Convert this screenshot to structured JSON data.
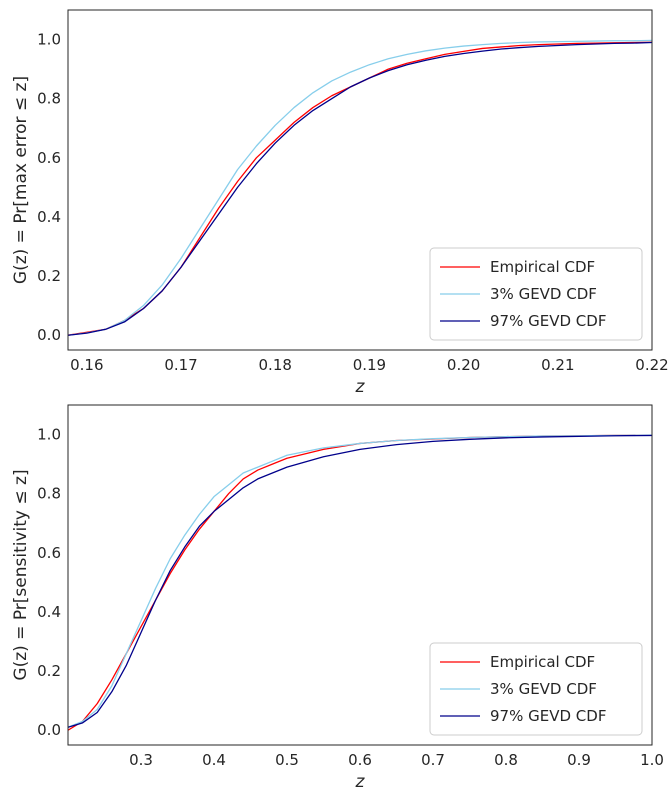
{
  "chart_data": [
    {
      "type": "line",
      "title": "",
      "xlabel": "z",
      "ylabel": "G(z) = Pr[max error ≤ z]",
      "xlim": [
        0.158,
        0.22
      ],
      "ylim": [
        -0.05,
        1.1
      ],
      "xticks": [
        0.16,
        0.17,
        0.18,
        0.19,
        0.2,
        0.21,
        0.22
      ],
      "xtick_labels": [
        "0.16",
        "0.17",
        "0.18",
        "0.19",
        "0.20",
        "0.21",
        "0.22"
      ],
      "yticks": [
        0.0,
        0.2,
        0.4,
        0.6,
        0.8,
        1.0
      ],
      "ytick_labels": [
        "0.0",
        "0.2",
        "0.4",
        "0.6",
        "0.8",
        "1.0"
      ],
      "grid": false,
      "legend_position": "lower-right",
      "series": [
        {
          "name": "Empirical CDF",
          "color": "#ff0000",
          "x": [
            0.158,
            0.16,
            0.162,
            0.164,
            0.166,
            0.168,
            0.17,
            0.172,
            0.174,
            0.176,
            0.178,
            0.18,
            0.182,
            0.184,
            0.186,
            0.188,
            0.19,
            0.192,
            0.194,
            0.196,
            0.198,
            0.2,
            0.202,
            0.204,
            0.206,
            0.208,
            0.21,
            0.212,
            0.214,
            0.216,
            0.218,
            0.22
          ],
          "y": [
            0.0,
            0.01,
            0.02,
            0.05,
            0.09,
            0.15,
            0.23,
            0.33,
            0.43,
            0.52,
            0.6,
            0.66,
            0.72,
            0.77,
            0.81,
            0.84,
            0.87,
            0.9,
            0.92,
            0.935,
            0.95,
            0.96,
            0.97,
            0.975,
            0.98,
            0.983,
            0.985,
            0.987,
            0.988,
            0.989,
            0.99,
            0.991
          ]
        },
        {
          "name": "3% GEVD CDF",
          "color": "#87ceeb",
          "x": [
            0.158,
            0.16,
            0.162,
            0.164,
            0.166,
            0.168,
            0.17,
            0.172,
            0.174,
            0.176,
            0.178,
            0.18,
            0.182,
            0.184,
            0.186,
            0.188,
            0.19,
            0.192,
            0.194,
            0.196,
            0.198,
            0.2,
            0.202,
            0.204,
            0.206,
            0.208,
            0.21,
            0.212,
            0.214,
            0.216,
            0.218,
            0.22
          ],
          "y": [
            0.0,
            0.008,
            0.02,
            0.05,
            0.1,
            0.17,
            0.26,
            0.36,
            0.46,
            0.56,
            0.64,
            0.71,
            0.77,
            0.82,
            0.86,
            0.89,
            0.915,
            0.935,
            0.95,
            0.962,
            0.971,
            0.978,
            0.983,
            0.987,
            0.99,
            0.992,
            0.993,
            0.994,
            0.995,
            0.996,
            0.996,
            0.997
          ]
        },
        {
          "name": "97% GEVD CDF",
          "color": "#00008b",
          "x": [
            0.158,
            0.16,
            0.162,
            0.164,
            0.166,
            0.168,
            0.17,
            0.172,
            0.174,
            0.176,
            0.178,
            0.18,
            0.182,
            0.184,
            0.186,
            0.188,
            0.19,
            0.192,
            0.194,
            0.196,
            0.198,
            0.2,
            0.202,
            0.204,
            0.206,
            0.208,
            0.21,
            0.212,
            0.214,
            0.216,
            0.218,
            0.22
          ],
          "y": [
            0.0,
            0.007,
            0.02,
            0.045,
            0.09,
            0.15,
            0.23,
            0.32,
            0.41,
            0.5,
            0.58,
            0.65,
            0.71,
            0.76,
            0.8,
            0.84,
            0.87,
            0.895,
            0.915,
            0.93,
            0.943,
            0.953,
            0.961,
            0.968,
            0.973,
            0.977,
            0.98,
            0.983,
            0.985,
            0.987,
            0.988,
            0.99
          ]
        }
      ]
    },
    {
      "type": "line",
      "title": "",
      "xlabel": "z",
      "ylabel": "G(z) = Pr[sensitivity ≤ z]",
      "xlim": [
        0.2,
        1.0
      ],
      "ylim": [
        -0.05,
        1.1
      ],
      "xticks": [
        0.3,
        0.4,
        0.5,
        0.6,
        0.7,
        0.8,
        0.9,
        1.0
      ],
      "xtick_labels": [
        "0.3",
        "0.4",
        "0.5",
        "0.6",
        "0.7",
        "0.8",
        "0.9",
        "1.0"
      ],
      "yticks": [
        0.0,
        0.2,
        0.4,
        0.6,
        0.8,
        1.0
      ],
      "ytick_labels": [
        "0.0",
        "0.2",
        "0.4",
        "0.6",
        "0.8",
        "1.0"
      ],
      "grid": false,
      "legend_position": "lower-right",
      "series": [
        {
          "name": "Empirical CDF",
          "color": "#ff0000",
          "x": [
            0.2,
            0.22,
            0.24,
            0.26,
            0.28,
            0.3,
            0.32,
            0.34,
            0.36,
            0.38,
            0.4,
            0.42,
            0.44,
            0.46,
            0.48,
            0.5,
            0.55,
            0.6,
            0.65,
            0.7,
            0.75,
            0.8,
            0.85,
            0.9,
            0.95,
            1.0
          ],
          "y": [
            0.0,
            0.03,
            0.09,
            0.17,
            0.26,
            0.35,
            0.44,
            0.53,
            0.61,
            0.68,
            0.74,
            0.8,
            0.85,
            0.88,
            0.9,
            0.92,
            0.95,
            0.97,
            0.98,
            0.985,
            0.99,
            0.993,
            0.995,
            0.996,
            0.997,
            0.998
          ]
        },
        {
          "name": "3% GEVD CDF",
          "color": "#87ceeb",
          "x": [
            0.2,
            0.22,
            0.24,
            0.26,
            0.28,
            0.3,
            0.32,
            0.34,
            0.36,
            0.38,
            0.4,
            0.42,
            0.44,
            0.46,
            0.48,
            0.5,
            0.55,
            0.6,
            0.65,
            0.7,
            0.75,
            0.8,
            0.85,
            0.9,
            0.95,
            1.0
          ],
          "y": [
            0.01,
            0.03,
            0.07,
            0.15,
            0.26,
            0.37,
            0.48,
            0.58,
            0.66,
            0.73,
            0.79,
            0.83,
            0.87,
            0.89,
            0.91,
            0.93,
            0.955,
            0.97,
            0.98,
            0.986,
            0.99,
            0.993,
            0.995,
            0.996,
            0.997,
            0.998
          ]
        },
        {
          "name": "97% GEVD CDF",
          "color": "#00008b",
          "x": [
            0.2,
            0.22,
            0.24,
            0.26,
            0.28,
            0.3,
            0.32,
            0.34,
            0.36,
            0.38,
            0.4,
            0.42,
            0.44,
            0.46,
            0.48,
            0.5,
            0.55,
            0.6,
            0.65,
            0.7,
            0.75,
            0.8,
            0.85,
            0.9,
            0.95,
            1.0
          ],
          "y": [
            0.01,
            0.025,
            0.06,
            0.13,
            0.22,
            0.33,
            0.44,
            0.54,
            0.62,
            0.69,
            0.74,
            0.78,
            0.82,
            0.85,
            0.87,
            0.89,
            0.925,
            0.95,
            0.966,
            0.977,
            0.984,
            0.989,
            0.992,
            0.994,
            0.996,
            0.997
          ]
        }
      ]
    }
  ]
}
